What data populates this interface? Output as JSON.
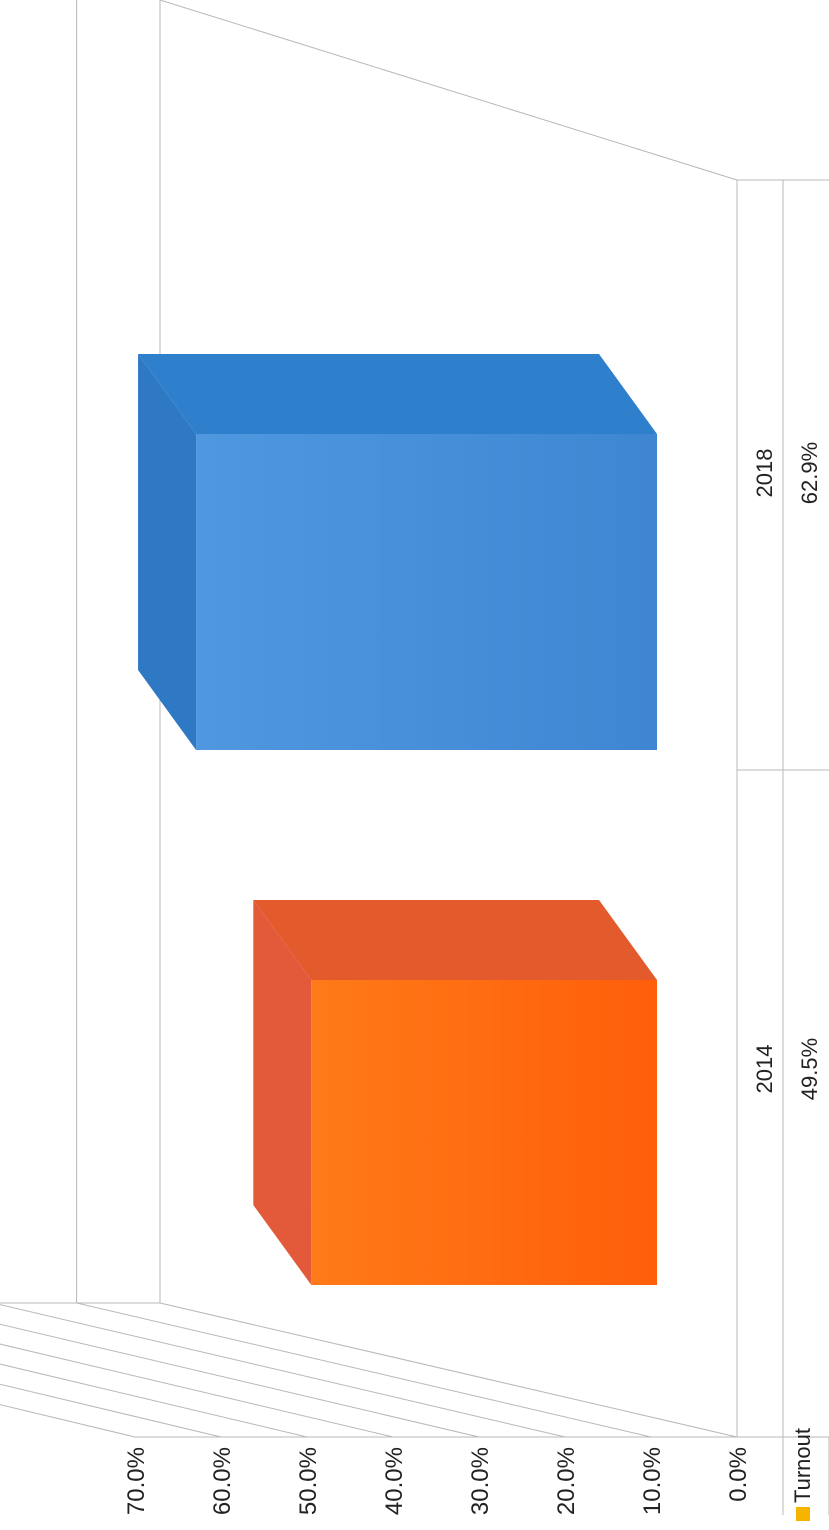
{
  "chart_data": {
    "type": "bar",
    "title": "",
    "xlabel": "",
    "ylabel": "",
    "categories": [
      "2014",
      "2018"
    ],
    "series": [
      {
        "name": "Turnout",
        "values": [
          49.5,
          62.9
        ]
      }
    ],
    "value_labels": [
      "49.5%",
      "62.9%"
    ],
    "ylim": [
      0,
      70
    ],
    "y_tick_labels": [
      "0.0%",
      "10.0%",
      "20.0%",
      "30.0%",
      "40.0%",
      "50.0%",
      "60.0%",
      "70.0%"
    ],
    "grid": true,
    "style": "3d-column with data table, rotated 90 degrees",
    "legend": {
      "entries": [
        "Turnout"
      ],
      "position": "bottom-left in data table",
      "key_color": "#f5b400"
    },
    "bar_colors": [
      "#ff6a10",
      "#4a8fd8"
    ]
  }
}
